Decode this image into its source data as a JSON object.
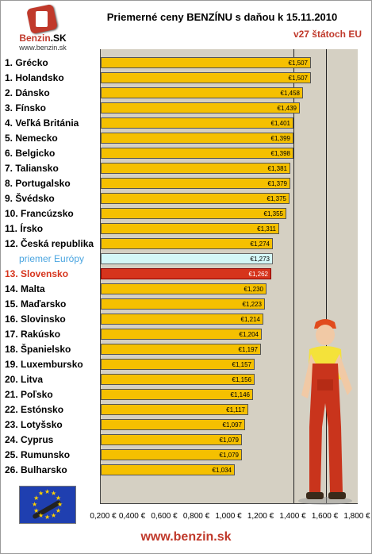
{
  "header": {
    "title": "Priemerné ceny BENZÍNU s daňou k 15.11.2010",
    "subtitle": "v27 štátoch EU"
  },
  "logo": {
    "brand_main": "Benzin",
    "brand_suffix": ".SK",
    "url": "www.benzin.sk"
  },
  "footer": {
    "url": "www.benzin.sk"
  },
  "colors": {
    "bar": "#f5c000",
    "europe_bar": "#d4f7f7",
    "highlight_bar": "#d6341c",
    "plot_background": "#d5d0c3"
  },
  "chart_data": {
    "type": "bar",
    "orientation": "horizontal",
    "title": "Priemerné ceny BENZÍNU s daňou k 15.11.2010",
    "subtitle": "v27 štátoch EU",
    "xlim": [
      0.2,
      1.8
    ],
    "x_ticks": [
      "0,200 €",
      "0,400 €",
      "0,600 €",
      "0,800 €",
      "1,000 €",
      "1,200 €",
      "1,400 €",
      "1,600 €",
      "1,800 €"
    ],
    "x_tick_values": [
      0.2,
      0.4,
      0.6,
      0.8,
      1.0,
      1.2,
      1.4,
      1.6,
      1.8
    ],
    "grid": "vertical lines at 1,400 € and 1,600 €",
    "categories": [
      "1. Grécko",
      "1. Holandsko",
      "2. Dánsko",
      "3. Fínsko",
      "4. Veľká Británia",
      "5. Nemecko",
      "6. Belgicko",
      "7. Taliansko",
      "8. Portugalsko",
      "9. Švédsko",
      "10. Francúzsko",
      "11. Írsko",
      "12. Česká republika",
      "priemer Európy",
      "13. Slovensko",
      "14. Malta",
      "15. Maďarsko",
      "16. Slovinsko",
      "17. Rakúsko",
      "18. Španielsko",
      "19. Luxembursko",
      "20. Litva",
      "21. Poľsko",
      "22. Estónsko",
      "23. Lotyšsko",
      "24. Cyprus",
      "25. Rumunsko",
      "26. Bulharsko"
    ],
    "values": [
      1.507,
      1.507,
      1.458,
      1.439,
      1.401,
      1.399,
      1.398,
      1.381,
      1.379,
      1.375,
      1.355,
      1.311,
      1.274,
      1.273,
      1.262,
      1.23,
      1.223,
      1.214,
      1.204,
      1.197,
      1.157,
      1.156,
      1.146,
      1.117,
      1.097,
      1.079,
      1.079,
      1.034
    ],
    "value_labels": [
      "€1,507",
      "€1,507",
      "€1,458",
      "€1,439",
      "€1,401",
      "€1,399",
      "€1,398",
      "€1,381",
      "€1,379",
      "€1,375",
      "€1,355",
      "€1,311",
      "€1,274",
      "€1,273",
      "€1,262",
      "€1,230",
      "€1,223",
      "€1,214",
      "€1,204",
      "€1,197",
      "€1,157",
      "€1,156",
      "€1,146",
      "€1,117",
      "€1,097",
      "€1,079",
      "€1,079",
      "€1,034"
    ],
    "europe_average_category": "priemer Európy",
    "highlight_category": "13. Slovensko"
  }
}
